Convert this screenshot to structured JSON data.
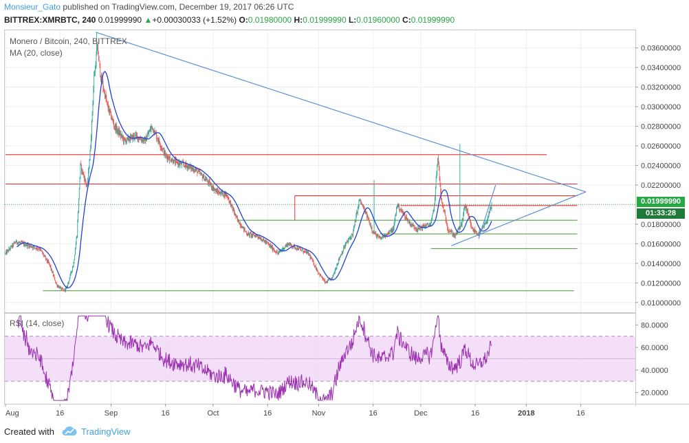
{
  "header": {
    "author": "Monsieur_Gato",
    "published_text": " published on TradingView.com, December 19, 2017 06:26 UTC",
    "symbol": "BITTREX:XMRBTC, 240",
    "last": "0.01999990",
    "change_arrow": "▲",
    "change": "+0.00030033 (+1.52%)",
    "o_label": "O:",
    "o_val": "0.01980000",
    "h_label": "H:",
    "h_val": "0.01999990",
    "l_label": "L:",
    "l_val": "0.01960000",
    "c_label": "C:",
    "c_val": "0.01999990"
  },
  "main_pane": {
    "title": "Monero / Bitcoin, 240, BITTREX",
    "indicator": "MA (20, close)",
    "last_price_tag": "0.01999990",
    "countdown_tag": "01:33:28"
  },
  "rsi_pane": {
    "title": "RSI (14, close)"
  },
  "footer": {
    "created_with": "Created with",
    "brand": "TradingView"
  },
  "colors": {
    "up": "#26a69a",
    "down": "#ef5350",
    "ma": "#1e3fd8",
    "trendline": "#5b8fd6",
    "resistance": "#e03030",
    "support": "#55a045",
    "rsi": "#9b2fb0",
    "rsi_band": "#efd5f5",
    "last_tag": "#28a745",
    "countdown_tag": "#1f7a3a"
  },
  "chart_data": [
    {
      "type": "candlestick",
      "title": "Monero / Bitcoin, 240, BITTREX",
      "x_tick_labels": [
        "Aug",
        "16",
        "Sep",
        "16",
        "Oct",
        "16",
        "Nov",
        "16",
        "Dec",
        "16",
        "2018",
        "16"
      ],
      "y_tick_labels": [
        "0.03600000",
        "0.03400000",
        "0.03200000",
        "0.03000000",
        "0.02800000",
        "0.02600000",
        "0.02400000",
        "0.02200000",
        "0.01800000",
        "0.01600000",
        "0.01400000",
        "0.01200000",
        "0.01000000"
      ],
      "ylim": [
        0.009,
        0.0378
      ],
      "x_anchor_days": [
        0,
        16,
        31,
        47,
        61,
        77,
        92,
        108,
        122,
        138,
        153,
        169
      ],
      "price_path": [
        [
          0,
          0.015
        ],
        [
          3,
          0.0162
        ],
        [
          7,
          0.0158
        ],
        [
          10,
          0.0155
        ],
        [
          13,
          0.0138
        ],
        [
          15,
          0.0118
        ],
        [
          17,
          0.0112
        ],
        [
          18,
          0.0115
        ],
        [
          20,
          0.014
        ],
        [
          21,
          0.017
        ],
        [
          22,
          0.024
        ],
        [
          24,
          0.0218
        ],
        [
          25,
          0.026
        ],
        [
          26,
          0.033
        ],
        [
          27,
          0.036
        ],
        [
          28,
          0.033
        ],
        [
          30,
          0.03
        ],
        [
          32,
          0.028
        ],
        [
          35,
          0.0265
        ],
        [
          38,
          0.027
        ],
        [
          41,
          0.0265
        ],
        [
          43,
          0.028
        ],
        [
          45,
          0.0265
        ],
        [
          47,
          0.025
        ],
        [
          50,
          0.0243
        ],
        [
          53,
          0.024
        ],
        [
          56,
          0.0235
        ],
        [
          59,
          0.0225
        ],
        [
          62,
          0.0213
        ],
        [
          65,
          0.021
        ],
        [
          68,
          0.0185
        ],
        [
          71,
          0.017
        ],
        [
          74,
          0.0168
        ],
        [
          77,
          0.016
        ],
        [
          80,
          0.015
        ],
        [
          83,
          0.016
        ],
        [
          86,
          0.0155
        ],
        [
          89,
          0.015
        ],
        [
          92,
          0.013
        ],
        [
          94,
          0.012
        ],
        [
          96,
          0.0125
        ],
        [
          98,
          0.0145
        ],
        [
          100,
          0.016
        ],
        [
          102,
          0.017
        ],
        [
          104,
          0.0205
        ],
        [
          106,
          0.019
        ],
        [
          108,
          0.0172
        ],
        [
          110,
          0.0165
        ],
        [
          112,
          0.017
        ],
        [
          114,
          0.0175
        ],
        [
          115,
          0.02
        ],
        [
          117,
          0.019
        ],
        [
          119,
          0.018
        ],
        [
          121,
          0.0175
        ],
        [
          123,
          0.0178
        ],
        [
          125,
          0.018
        ],
        [
          126,
          0.02
        ],
        [
          127,
          0.025
        ],
        [
          128,
          0.0205
        ],
        [
          130,
          0.0175
        ],
        [
          132,
          0.0168
        ],
        [
          134,
          0.018
        ],
        [
          135,
          0.02
        ],
        [
          137,
          0.0175
        ],
        [
          139,
          0.017
        ],
        [
          141,
          0.018
        ],
        [
          143,
          0.02
        ]
      ],
      "moving_average": {
        "name": "MA (20, close)",
        "lag_days": 2.5
      },
      "lines": [
        {
          "kind": "trendline",
          "from": [
            26.5,
            0.0376
          ],
          "to": [
            170.5,
            0.0213
          ]
        },
        {
          "kind": "trendline",
          "from": [
            131,
            0.0158
          ],
          "to": [
            170.5,
            0.0213
          ]
        },
        {
          "kind": "trendline",
          "from": [
            139,
            0.0165
          ],
          "to": [
            144,
            0.022
          ]
        },
        {
          "kind": "horizontal",
          "role": "resistance",
          "y": 0.0251,
          "x": [
            0,
            159
          ]
        },
        {
          "kind": "horizontal",
          "role": "resistance",
          "y": 0.0221,
          "x": [
            0,
            168
          ]
        },
        {
          "kind": "horizontal",
          "role": "resistance",
          "y": 0.0209,
          "x": [
            85,
            168
          ]
        },
        {
          "kind": "horizontal",
          "role": "resistance",
          "y": 0.0199,
          "x": [
            116,
            168
          ]
        },
        {
          "kind": "horizontal",
          "role": "support",
          "y": 0.0184,
          "x": [
            68,
            168
          ]
        },
        {
          "kind": "horizontal",
          "role": "support",
          "y": 0.017,
          "x": [
            110,
            168
          ]
        },
        {
          "kind": "horizontal",
          "role": "support",
          "y": 0.0155,
          "x": [
            125,
            168
          ]
        },
        {
          "kind": "horizontal",
          "role": "support",
          "y": 0.0112,
          "x": [
            11,
            167
          ]
        },
        {
          "kind": "vertical",
          "x": 85,
          "y": [
            0.0184,
            0.0209
          ]
        }
      ],
      "last_price": 0.0199999
    },
    {
      "type": "line",
      "title": "RSI (14, close)",
      "y_tick_labels": [
        "80.0000",
        "60.0000",
        "40.0000",
        "20.0000"
      ],
      "ylim": [
        10,
        90
      ],
      "band": [
        30,
        70
      ],
      "midline": 50
    }
  ]
}
